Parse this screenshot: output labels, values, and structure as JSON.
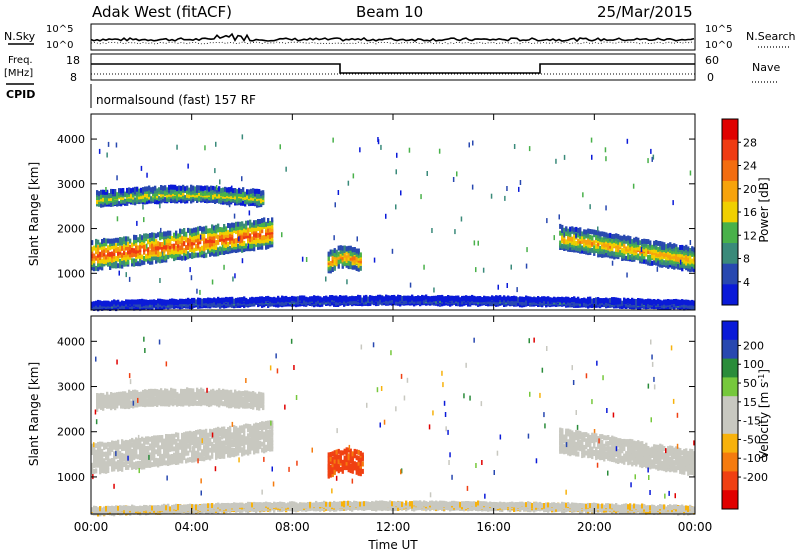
{
  "header": {
    "title": "Adak West (fitACF)",
    "beam": "Beam 10",
    "date": "25/Mar/2015"
  },
  "strip_labels": {
    "nsky": "N.Sky",
    "nsearch": "N.Search",
    "freq": "Freq.",
    "mhz": "[MHz]",
    "nave": "Nave",
    "cpid": "CPID",
    "program": "normalsound (fast) 157 RF"
  },
  "noise_axis": {
    "top": "10^5",
    "bottom": "10^0"
  },
  "freq_axis": {
    "left_top": "18",
    "left_bottom": "8",
    "right_top": "60",
    "right_bottom": "0"
  },
  "time_axis": {
    "label": "Time UT",
    "ticks": [
      "00:00",
      "04:00",
      "08:00",
      "12:00",
      "16:00",
      "20:00",
      "00:00"
    ],
    "range_hours": [
      0,
      24
    ]
  },
  "colors": {
    "power": [
      "#0a1ad8",
      "#2848b0",
      "#3a8a7a",
      "#49b14a",
      "#f0d000",
      "#f7a30c",
      "#f36d10",
      "#ef3b12",
      "#e00000"
    ],
    "velocity": [
      "#e00000",
      "#f04012",
      "#f57b0e",
      "#f7b20c",
      "#c8c8c0",
      "#c8c8c0",
      "#76c83c",
      "#2a8c3a",
      "#2848b0",
      "#0a1ad8"
    ]
  },
  "chart_data": [
    {
      "type": "heatmap",
      "name": "power",
      "ylabel": "Slant Range [km]",
      "ylim": [
        180,
        4560
      ],
      "yticks": [
        "1000",
        "2000",
        "3000",
        "4000"
      ],
      "colorbar_label": "Power [dB]",
      "colorbar_ticks": [
        "4",
        "8",
        "12",
        "16",
        "20",
        "24",
        "28"
      ],
      "colorbar_range": [
        0,
        32
      ],
      "features": [
        {
          "t0": 0.0,
          "t1": 7.2,
          "r_center": 1400,
          "r_half": 290,
          "db": 26
        },
        {
          "t0": 0.2,
          "t1": 6.8,
          "r_center": 2650,
          "r_half": 140,
          "db": 16
        },
        {
          "t0": 9.4,
          "t1": 10.7,
          "r_center": 1250,
          "r_half": 200,
          "db": 22
        },
        {
          "t0": 18.6,
          "t1": 24.0,
          "r_center": 1550,
          "r_half": 230,
          "db": 20
        },
        {
          "t0": 0.0,
          "t1": 24.0,
          "r_center": 270,
          "r_half": 60,
          "db": 6
        }
      ]
    },
    {
      "type": "heatmap",
      "name": "velocity",
      "ylabel": "Slant Range [km]",
      "ylim": [
        180,
        4560
      ],
      "yticks": [
        "1000",
        "2000",
        "3000",
        "4000"
      ],
      "colorbar_label": "Velocity [m s",
      "colorbar_unit_exp": "-1",
      "colorbar_unit_close": "]",
      "colorbar_ticks": [
        "200",
        "100",
        "50",
        "15",
        "-15",
        "-50",
        "-100",
        "-200"
      ],
      "features": [
        {
          "t0": 0.0,
          "t1": 7.2,
          "r_center": 1400,
          "r_half": 290,
          "v": 0
        },
        {
          "t0": 0.2,
          "t1": 6.8,
          "r_center": 2650,
          "r_half": 140,
          "v": 0
        },
        {
          "t0": 9.4,
          "t1": 10.8,
          "r_center": 1250,
          "r_half": 220,
          "v": -130
        },
        {
          "t0": 18.6,
          "t1": 24.0,
          "r_center": 1550,
          "r_half": 230,
          "v": 0
        },
        {
          "t0": 0.0,
          "t1": 24.0,
          "r_center": 240,
          "r_half": 50,
          "v": -30
        }
      ]
    }
  ]
}
